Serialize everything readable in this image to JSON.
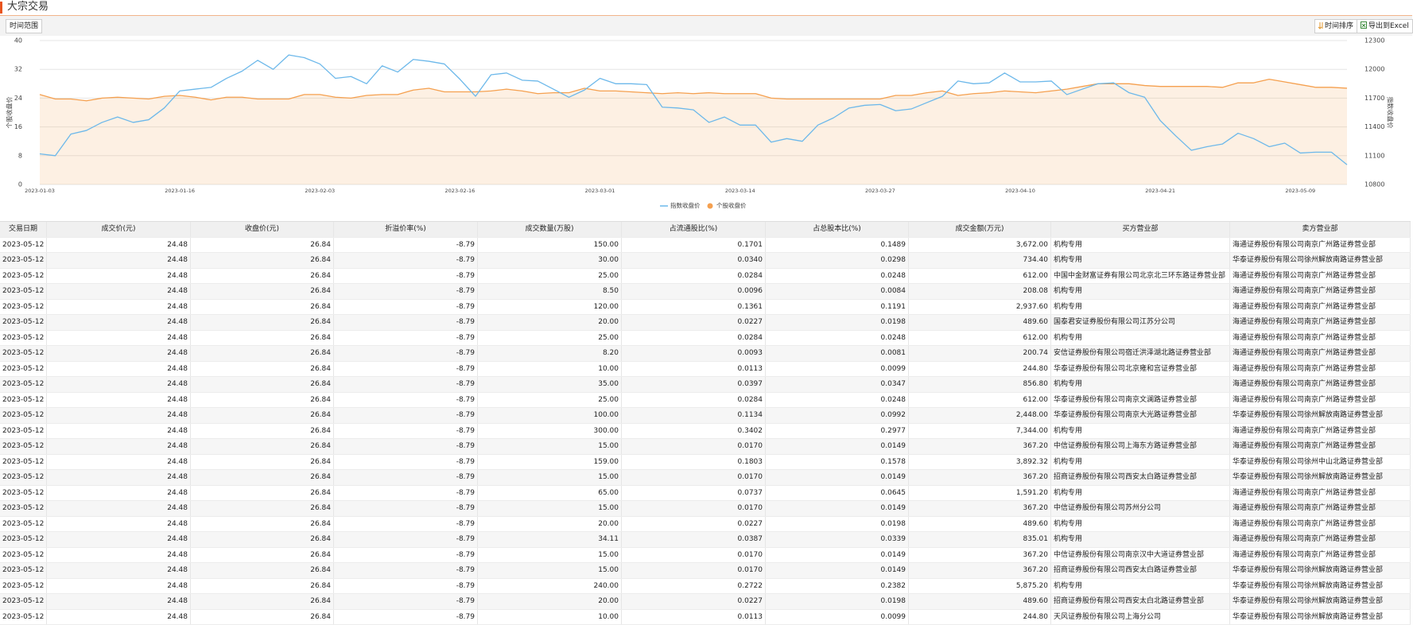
{
  "header": {
    "title": "大宗交易"
  },
  "toolbar": {
    "range": "时间范围",
    "sort": "时间排序",
    "export": "导出到Excel"
  },
  "chart_data": {
    "type": "line",
    "ylabel": "个股收盘价",
    "y2label": "指数收盘价",
    "ylim": [
      0,
      40
    ],
    "yticks": [
      0,
      8,
      16,
      24,
      32,
      40
    ],
    "y2lim": [
      10800,
      12300
    ],
    "y2ticks": [
      10800,
      11100,
      11400,
      11700,
      12000,
      12300
    ],
    "grid": true,
    "legend": "bottom",
    "categories": [
      "2023-01-03",
      null,
      null,
      null,
      null,
      null,
      null,
      null,
      null,
      "2023-01-16",
      null,
      null,
      null,
      null,
      null,
      null,
      null,
      null,
      "2023-02-03",
      null,
      null,
      null,
      null,
      null,
      null,
      null,
      null,
      "2023-02-16",
      null,
      null,
      null,
      null,
      null,
      null,
      null,
      null,
      "2023-03-01",
      null,
      null,
      null,
      null,
      null,
      null,
      null,
      null,
      "2023-03-14",
      null,
      null,
      null,
      null,
      null,
      null,
      null,
      null,
      "2023-03-27",
      null,
      null,
      null,
      null,
      null,
      null,
      null,
      null,
      "2023-04-10",
      null,
      null,
      null,
      null,
      null,
      null,
      null,
      null,
      "2023-04-21",
      null,
      null,
      null,
      null,
      null,
      null,
      null,
      null,
      "2023-05-09",
      null,
      null,
      null
    ],
    "series": [
      {
        "name": "指数收盘价",
        "color": "#6cb8ea",
        "axis": "y2",
        "area": false,
        "values": [
          11119,
          11100,
          11325,
          11363,
          11447,
          11503,
          11447,
          11475,
          11597,
          11775,
          11794,
          11812,
          11906,
          11981,
          12094,
          12000,
          12150,
          12122,
          12056,
          11906,
          11925,
          11850,
          12037,
          11972,
          12103,
          12084,
          12056,
          11897,
          11719,
          11944,
          11962,
          11887,
          11878,
          11794,
          11709,
          11784,
          11906,
          11850,
          11850,
          11841,
          11606,
          11597,
          11578,
          11447,
          11503,
          11419,
          11419,
          11241,
          11278,
          11250,
          11419,
          11494,
          11597,
          11625,
          11634,
          11569,
          11587,
          11653,
          11719,
          11878,
          11850,
          11859,
          11962,
          11869,
          11869,
          11878,
          11737,
          11794,
          11850,
          11859,
          11756,
          11709,
          11466,
          11306,
          11156,
          11194,
          11222,
          11334,
          11278,
          11194,
          11231,
          11128,
          11137,
          11137,
          11006
        ]
      },
      {
        "name": "个股收盘价",
        "color": "#f5a04f",
        "axis": "y",
        "area": true,
        "values": [
          25,
          23.75,
          23.75,
          23.25,
          24,
          24.25,
          24,
          23.75,
          24.5,
          24.75,
          24.25,
          23.5,
          24.25,
          24.25,
          23.75,
          23.75,
          23.75,
          25,
          25,
          24.25,
          24,
          24.75,
          25,
          25,
          26.25,
          26.75,
          25.75,
          25.75,
          25.75,
          26,
          26.5,
          26,
          25.25,
          25.5,
          25.5,
          26.75,
          26,
          26,
          25.75,
          25.5,
          25.25,
          25.5,
          25.25,
          25.5,
          25.25,
          25.25,
          25.25,
          24,
          23.75,
          23.75,
          23.75,
          23.75,
          23.75,
          23.75,
          23.75,
          24.75,
          24.75,
          25.5,
          26,
          24.75,
          25.25,
          25.5,
          26,
          25.75,
          25.5,
          26,
          26.5,
          27.25,
          28,
          28,
          28,
          27.5,
          27.25,
          27.25,
          27.25,
          27.25,
          27,
          28.25,
          28.25,
          29.25,
          28.5,
          27.75,
          27,
          27,
          26.75
        ]
      }
    ]
  },
  "table": {
    "columns": [
      "交易日期",
      "成交价(元)",
      "收盘价(元)",
      "折溢价率(%)",
      "成交数量(万股)",
      "占流通股比(%)",
      "占总股本比(%)",
      "成交金额(万元)",
      "买方营业部",
      "卖方营业部"
    ],
    "rows": [
      [
        "2023-05-12",
        "24.48",
        "26.84",
        "-8.79",
        "150.00",
        "0.1701",
        "0.1489",
        "3,672.00",
        "机构专用",
        "海通证券股份有限公司南京广州路证券营业部"
      ],
      [
        "2023-05-12",
        "24.48",
        "26.84",
        "-8.79",
        "30.00",
        "0.0340",
        "0.0298",
        "734.40",
        "机构专用",
        "华泰证券股份有限公司徐州解放南路证券营业部"
      ],
      [
        "2023-05-12",
        "24.48",
        "26.84",
        "-8.79",
        "25.00",
        "0.0284",
        "0.0248",
        "612.00",
        "中国中金财富证券有限公司北京北三环东路证券营业部",
        "海通证券股份有限公司南京广州路证券营业部"
      ],
      [
        "2023-05-12",
        "24.48",
        "26.84",
        "-8.79",
        "8.50",
        "0.0096",
        "0.0084",
        "208.08",
        "机构专用",
        "海通证券股份有限公司南京广州路证券营业部"
      ],
      [
        "2023-05-12",
        "24.48",
        "26.84",
        "-8.79",
        "120.00",
        "0.1361",
        "0.1191",
        "2,937.60",
        "机构专用",
        "海通证券股份有限公司南京广州路证券营业部"
      ],
      [
        "2023-05-12",
        "24.48",
        "26.84",
        "-8.79",
        "20.00",
        "0.0227",
        "0.0198",
        "489.60",
        "国泰君安证券股份有限公司江苏分公司",
        "海通证券股份有限公司南京广州路证券营业部"
      ],
      [
        "2023-05-12",
        "24.48",
        "26.84",
        "-8.79",
        "25.00",
        "0.0284",
        "0.0248",
        "612.00",
        "机构专用",
        "海通证券股份有限公司南京广州路证券营业部"
      ],
      [
        "2023-05-12",
        "24.48",
        "26.84",
        "-8.79",
        "8.20",
        "0.0093",
        "0.0081",
        "200.74",
        "安信证券股份有限公司宿迁洪泽湖北路证券营业部",
        "海通证券股份有限公司南京广州路证券营业部"
      ],
      [
        "2023-05-12",
        "24.48",
        "26.84",
        "-8.79",
        "10.00",
        "0.0113",
        "0.0099",
        "244.80",
        "华泰证券股份有限公司北京雍和宫证券营业部",
        "海通证券股份有限公司南京广州路证券营业部"
      ],
      [
        "2023-05-12",
        "24.48",
        "26.84",
        "-8.79",
        "35.00",
        "0.0397",
        "0.0347",
        "856.80",
        "机构专用",
        "海通证券股份有限公司南京广州路证券营业部"
      ],
      [
        "2023-05-12",
        "24.48",
        "26.84",
        "-8.79",
        "25.00",
        "0.0284",
        "0.0248",
        "612.00",
        "华泰证券股份有限公司南京文澜路证券营业部",
        "海通证券股份有限公司南京广州路证券营业部"
      ],
      [
        "2023-05-12",
        "24.48",
        "26.84",
        "-8.79",
        "100.00",
        "0.1134",
        "0.0992",
        "2,448.00",
        "华泰证券股份有限公司南京大光路证券营业部",
        "华泰证券股份有限公司徐州解放南路证券营业部"
      ],
      [
        "2023-05-12",
        "24.48",
        "26.84",
        "-8.79",
        "300.00",
        "0.3402",
        "0.2977",
        "7,344.00",
        "机构专用",
        "海通证券股份有限公司南京广州路证券营业部"
      ],
      [
        "2023-05-12",
        "24.48",
        "26.84",
        "-8.79",
        "15.00",
        "0.0170",
        "0.0149",
        "367.20",
        "中信证券股份有限公司上海东方路证券营业部",
        "海通证券股份有限公司南京广州路证券营业部"
      ],
      [
        "2023-05-12",
        "24.48",
        "26.84",
        "-8.79",
        "159.00",
        "0.1803",
        "0.1578",
        "3,892.32",
        "机构专用",
        "华泰证券股份有限公司徐州中山北路证券营业部"
      ],
      [
        "2023-05-12",
        "24.48",
        "26.84",
        "-8.79",
        "15.00",
        "0.0170",
        "0.0149",
        "367.20",
        "招商证券股份有限公司西安太白路证券营业部",
        "华泰证券股份有限公司徐州解放南路证券营业部"
      ],
      [
        "2023-05-12",
        "24.48",
        "26.84",
        "-8.79",
        "65.00",
        "0.0737",
        "0.0645",
        "1,591.20",
        "机构专用",
        "海通证券股份有限公司南京广州路证券营业部"
      ],
      [
        "2023-05-12",
        "24.48",
        "26.84",
        "-8.79",
        "15.00",
        "0.0170",
        "0.0149",
        "367.20",
        "中信证券股份有限公司苏州分公司",
        "海通证券股份有限公司南京广州路证券营业部"
      ],
      [
        "2023-05-12",
        "24.48",
        "26.84",
        "-8.79",
        "20.00",
        "0.0227",
        "0.0198",
        "489.60",
        "机构专用",
        "海通证券股份有限公司南京广州路证券营业部"
      ],
      [
        "2023-05-12",
        "24.48",
        "26.84",
        "-8.79",
        "34.11",
        "0.0387",
        "0.0339",
        "835.01",
        "机构专用",
        "海通证券股份有限公司南京广州路证券营业部"
      ],
      [
        "2023-05-12",
        "24.48",
        "26.84",
        "-8.79",
        "15.00",
        "0.0170",
        "0.0149",
        "367.20",
        "中信证券股份有限公司南京汉中大道证券营业部",
        "海通证券股份有限公司南京广州路证券营业部"
      ],
      [
        "2023-05-12",
        "24.48",
        "26.84",
        "-8.79",
        "15.00",
        "0.0170",
        "0.0149",
        "367.20",
        "招商证券股份有限公司西安太白路证券营业部",
        "华泰证券股份有限公司徐州解放南路证券营业部"
      ],
      [
        "2023-05-12",
        "24.48",
        "26.84",
        "-8.79",
        "240.00",
        "0.2722",
        "0.2382",
        "5,875.20",
        "机构专用",
        "华泰证券股份有限公司徐州解放南路证券营业部"
      ],
      [
        "2023-05-12",
        "24.48",
        "26.84",
        "-8.79",
        "20.00",
        "0.0227",
        "0.0198",
        "489.60",
        "招商证券股份有限公司西安太白北路证券营业部",
        "华泰证券股份有限公司徐州解放南路证券营业部"
      ],
      [
        "2023-05-12",
        "24.48",
        "26.84",
        "-8.79",
        "10.00",
        "0.0113",
        "0.0099",
        "244.80",
        "天风证券股份有限公司上海分公司",
        "华泰证券股份有限公司徐州解放南路证券营业部"
      ]
    ]
  }
}
